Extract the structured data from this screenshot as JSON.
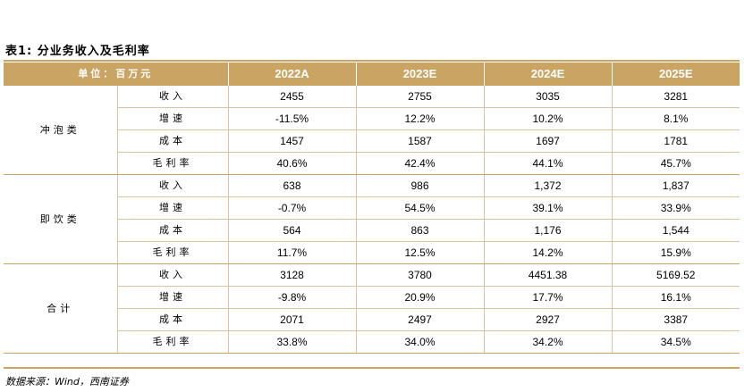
{
  "title": "表1: 分业务收入及毛利率",
  "header": {
    "unit": "单位：百万元",
    "years": [
      "2022A",
      "2023E",
      "2024E",
      "2025E"
    ]
  },
  "groups": [
    {
      "category": "冲泡类",
      "rows": [
        {
          "metric": "收入",
          "values": [
            "2455",
            "2755",
            "3035",
            "3281"
          ]
        },
        {
          "metric": "增速",
          "values": [
            "-11.5%",
            "12.2%",
            "10.2%",
            "8.1%"
          ]
        },
        {
          "metric": "成本",
          "values": [
            "1457",
            "1587",
            "1697",
            "1781"
          ]
        },
        {
          "metric": "毛利率",
          "values": [
            "40.6%",
            "42.4%",
            "44.1%",
            "45.7%"
          ]
        }
      ]
    },
    {
      "category": "即饮类",
      "rows": [
        {
          "metric": "收入",
          "values": [
            "638",
            "986",
            "1,372",
            "1,837"
          ]
        },
        {
          "metric": "增速",
          "values": [
            "-0.7%",
            "54.5%",
            "39.1%",
            "33.9%"
          ]
        },
        {
          "metric": "成本",
          "values": [
            "564",
            "863",
            "1,176",
            "1,544"
          ]
        },
        {
          "metric": "毛利率",
          "values": [
            "11.7%",
            "12.5%",
            "14.2%",
            "15.9%"
          ]
        }
      ]
    },
    {
      "category": "合计",
      "rows": [
        {
          "metric": "收入",
          "values": [
            "3128",
            "3780",
            "4451.38",
            "5169.52"
          ]
        },
        {
          "metric": "增速",
          "values": [
            "-9.8%",
            "20.9%",
            "17.7%",
            "16.1%"
          ]
        },
        {
          "metric": "成本",
          "values": [
            "2071",
            "2497",
            "2927",
            "3387"
          ]
        },
        {
          "metric": "毛利率",
          "values": [
            "33.8%",
            "34.0%",
            "34.2%",
            "34.5%"
          ]
        }
      ]
    }
  ],
  "source": "数据来源：Wind，西南证券",
  "colors": {
    "header_bg": "#c9a463",
    "border": "#d8c4a0"
  }
}
